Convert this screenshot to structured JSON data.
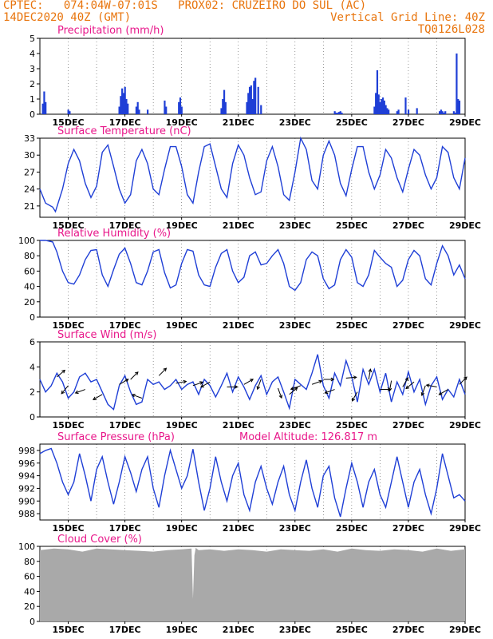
{
  "header": {
    "line1_left": "CPTEC:   074:04W-07:01S   PROX02: CRUZEIRO DO SUL (AC)",
    "line2_left": "14DEC2020 40Z (GMT)",
    "line2_right": "Vertical Grid Line: 40Z",
    "line3_right": "TQ0126L028"
  },
  "colors": {
    "header": "#e8740c",
    "title": "#e8178a",
    "line": "#1f3fd6",
    "bar": "#1f3fd6",
    "cloud": "#a9a9a9",
    "arrow": "#000000"
  },
  "x_tick_labels": [
    "15DEC",
    "17DEC",
    "19DEC",
    "21DEC",
    "23DEC",
    "25DEC",
    "27DEC",
    "29DEC"
  ],
  "chart_data": [
    {
      "type": "bar",
      "title": "Precipitation (mm/h)",
      "ylim": [
        0,
        5
      ],
      "yticks": [
        0,
        1,
        2,
        3,
        4,
        5
      ],
      "xlim": [
        14.0,
        29.0
      ],
      "x": [
        14.1,
        14.15,
        14.2,
        15.0,
        15.05,
        16.8,
        16.85,
        16.9,
        16.95,
        17.0,
        17.05,
        17.1,
        17.4,
        17.45,
        17.5,
        17.8,
        18.4,
        18.45,
        18.9,
        18.95,
        19.0,
        20.4,
        20.45,
        20.5,
        20.55,
        21.3,
        21.35,
        21.4,
        21.45,
        21.5,
        21.55,
        21.6,
        21.7,
        21.8,
        24.4,
        24.45,
        24.5,
        24.55,
        24.6,
        24.65,
        25.8,
        25.85,
        25.9,
        25.95,
        26.0,
        26.05,
        26.1,
        26.15,
        26.2,
        26.25,
        26.3,
        26.6,
        26.65,
        26.9,
        27.0,
        27.3,
        28.1,
        28.15,
        28.2,
        28.25,
        28.3,
        28.6,
        28.65,
        28.7,
        28.75,
        28.8
      ],
      "values": [
        0.7,
        1.5,
        0.8,
        0.3,
        0.2,
        0.5,
        1.2,
        1.7,
        1.4,
        1.8,
        1.0,
        0.7,
        0.5,
        0.8,
        0.3,
        0.3,
        0.9,
        0.5,
        0.8,
        1.1,
        0.5,
        0.4,
        1.0,
        1.6,
        0.8,
        0.8,
        1.4,
        1.8,
        1.9,
        1.0,
        2.2,
        2.4,
        1.8,
        0.6,
        0.2,
        0.1,
        0.1,
        0.15,
        0.2,
        0.1,
        0.5,
        1.4,
        2.9,
        1.3,
        0.8,
        1.0,
        1.1,
        0.9,
        0.6,
        0.4,
        0.3,
        0.2,
        0.3,
        1.1,
        0.3,
        0.4,
        0.2,
        0.3,
        0.2,
        0.1,
        0.2,
        0.2,
        0.1,
        4.0,
        1.0,
        0.9
      ]
    },
    {
      "type": "line",
      "title": "Surface Temperature (nC)",
      "ylim": [
        19,
        33
      ],
      "yticks": [
        21,
        24,
        27,
        30,
        33
      ],
      "xlim": [
        14.0,
        29.0
      ],
      "x": [
        14.0,
        14.2,
        14.45,
        14.55,
        14.8,
        15.0,
        15.2,
        15.4,
        15.6,
        15.8,
        16.0,
        16.2,
        16.4,
        16.6,
        16.8,
        17.0,
        17.2,
        17.4,
        17.6,
        17.8,
        18.0,
        18.2,
        18.4,
        18.6,
        18.8,
        19.0,
        19.2,
        19.4,
        19.6,
        19.8,
        20.0,
        20.2,
        20.4,
        20.6,
        20.8,
        21.0,
        21.2,
        21.4,
        21.6,
        21.8,
        22.0,
        22.2,
        22.4,
        22.6,
        22.8,
        23.0,
        23.2,
        23.4,
        23.6,
        23.8,
        24.0,
        24.2,
        24.4,
        24.6,
        24.8,
        25.0,
        25.2,
        25.4,
        25.6,
        25.8,
        26.0,
        26.2,
        26.4,
        26.6,
        26.8,
        27.0,
        27.2,
        27.4,
        27.6,
        27.8,
        28.0,
        28.2,
        28.4,
        28.6,
        28.8,
        29.0
      ],
      "values": [
        24.0,
        21.5,
        20.8,
        20.0,
        24.0,
        28.5,
        31.0,
        29.0,
        25.0,
        22.5,
        24.5,
        30.5,
        31.8,
        28.0,
        24.0,
        21.5,
        23.0,
        29.0,
        31.0,
        28.5,
        24.0,
        23.0,
        27.5,
        31.5,
        31.5,
        28.0,
        23.0,
        21.5,
        27.0,
        31.5,
        32.0,
        28.0,
        24.0,
        22.5,
        28.5,
        31.8,
        30.0,
        26.0,
        23.0,
        23.5,
        29.0,
        31.5,
        28.0,
        23.0,
        22.0,
        27.0,
        33.0,
        31.0,
        25.5,
        24.0,
        30.0,
        32.5,
        30.0,
        25.0,
        22.8,
        27.5,
        31.5,
        31.5,
        27.0,
        24.0,
        26.5,
        31.0,
        29.5,
        26.0,
        23.5,
        27.5,
        31.0,
        30.0,
        26.5,
        24.0,
        26.0,
        31.5,
        30.5,
        26.0,
        24.0,
        29.5
      ]
    },
    {
      "type": "line",
      "title": "Relative Humidity (%)",
      "ylim": [
        0,
        100
      ],
      "yticks": [
        0,
        20,
        40,
        60,
        80,
        100
      ],
      "xlim": [
        14.0,
        29.0
      ],
      "x": [
        14.0,
        14.2,
        14.45,
        14.6,
        14.8,
        15.0,
        15.2,
        15.4,
        15.6,
        15.8,
        16.0,
        16.2,
        16.4,
        16.6,
        16.8,
        17.0,
        17.2,
        17.4,
        17.6,
        17.8,
        18.0,
        18.2,
        18.4,
        18.6,
        18.8,
        19.0,
        19.2,
        19.4,
        19.6,
        19.8,
        20.0,
        20.2,
        20.4,
        20.6,
        20.8,
        21.0,
        21.2,
        21.4,
        21.6,
        21.8,
        22.0,
        22.2,
        22.4,
        22.6,
        22.8,
        23.0,
        23.2,
        23.4,
        23.6,
        23.8,
        24.0,
        24.2,
        24.4,
        24.6,
        24.8,
        25.0,
        25.2,
        25.4,
        25.6,
        25.8,
        26.0,
        26.2,
        26.4,
        26.6,
        26.8,
        27.0,
        27.2,
        27.4,
        27.6,
        27.8,
        28.0,
        28.2,
        28.4,
        28.6,
        28.8,
        29.0
      ],
      "values": [
        100,
        100,
        98,
        85,
        60,
        45,
        43,
        55,
        75,
        87,
        88,
        55,
        40,
        62,
        82,
        90,
        70,
        45,
        42,
        60,
        85,
        88,
        58,
        38,
        42,
        70,
        88,
        86,
        55,
        42,
        40,
        65,
        83,
        88,
        60,
        45,
        52,
        80,
        85,
        68,
        70,
        80,
        88,
        70,
        40,
        35,
        45,
        75,
        85,
        80,
        50,
        37,
        42,
        75,
        88,
        78,
        45,
        40,
        55,
        87,
        78,
        70,
        65,
        40,
        48,
        75,
        87,
        80,
        50,
        42,
        70,
        93,
        80,
        55,
        68,
        50
      ]
    },
    {
      "type": "line",
      "title": "Surface Wind (m/s)",
      "ylim": [
        0,
        6
      ],
      "yticks": [
        0,
        2,
        4,
        6
      ],
      "xlim": [
        14.0,
        29.0
      ],
      "x": [
        14.0,
        14.2,
        14.4,
        14.6,
        14.8,
        15.0,
        15.2,
        15.4,
        15.6,
        15.8,
        16.0,
        16.2,
        16.4,
        16.6,
        16.8,
        17.0,
        17.2,
        17.4,
        17.6,
        17.8,
        18.0,
        18.2,
        18.4,
        18.6,
        18.8,
        19.0,
        19.2,
        19.4,
        19.6,
        19.8,
        20.0,
        20.2,
        20.4,
        20.6,
        20.8,
        21.0,
        21.2,
        21.4,
        21.6,
        21.8,
        22.0,
        22.2,
        22.4,
        22.6,
        22.8,
        23.0,
        23.2,
        23.4,
        23.6,
        23.8,
        24.0,
        24.2,
        24.4,
        24.6,
        24.8,
        25.0,
        25.2,
        25.4,
        25.6,
        25.8,
        26.0,
        26.2,
        26.4,
        26.6,
        26.8,
        27.0,
        27.2,
        27.4,
        27.6,
        27.8,
        28.0,
        28.2,
        28.4,
        28.6,
        28.8,
        29.0
      ],
      "values": [
        3.0,
        2.0,
        2.5,
        3.5,
        2.8,
        1.5,
        2.0,
        3.2,
        3.5,
        2.8,
        3.0,
        2.0,
        1.0,
        0.6,
        2.5,
        3.3,
        2.0,
        1.0,
        1.2,
        3.0,
        2.6,
        2.8,
        2.2,
        2.5,
        3.0,
        2.2,
        2.6,
        2.8,
        1.8,
        3.0,
        2.5,
        1.6,
        2.5,
        3.5,
        2.0,
        3.2,
        2.4,
        1.4,
        2.5,
        3.3,
        1.8,
        2.8,
        3.2,
        2.0,
        0.7,
        3.0,
        2.6,
        2.2,
        3.5,
        5.0,
        2.5,
        1.5,
        3.5,
        2.5,
        4.5,
        3.2,
        1.2,
        3.8,
        2.6,
        3.8,
        2.0,
        3.5,
        1.2,
        2.8,
        1.8,
        3.6,
        2.0,
        3.0,
        1.0,
        2.5,
        3.2,
        1.4,
        2.2,
        1.6,
        3.0,
        1.8
      ]
    },
    {
      "type": "line",
      "title": "Surface Pressure (hPa)",
      "annotation": "Model Altitude: 126.817 m",
      "ylim": [
        987,
        999
      ],
      "yticks": [
        988,
        990,
        992,
        994,
        996,
        998
      ],
      "xlim": [
        14.0,
        29.0
      ],
      "x": [
        14.0,
        14.2,
        14.4,
        14.6,
        14.8,
        15.0,
        15.2,
        15.4,
        15.6,
        15.8,
        16.0,
        16.2,
        16.4,
        16.6,
        16.8,
        17.0,
        17.2,
        17.4,
        17.6,
        17.8,
        18.0,
        18.2,
        18.4,
        18.6,
        18.8,
        19.0,
        19.2,
        19.4,
        19.6,
        19.8,
        20.0,
        20.2,
        20.4,
        20.6,
        20.8,
        21.0,
        21.2,
        21.4,
        21.6,
        21.8,
        22.0,
        22.2,
        22.4,
        22.6,
        22.8,
        23.0,
        23.2,
        23.4,
        23.6,
        23.8,
        24.0,
        24.2,
        24.4,
        24.6,
        24.8,
        25.0,
        25.2,
        25.4,
        25.6,
        25.8,
        26.0,
        26.2,
        26.4,
        26.6,
        26.8,
        27.0,
        27.2,
        27.4,
        27.6,
        27.8,
        28.0,
        28.2,
        28.4,
        28.6,
        28.8,
        29.0
      ],
      "values": [
        997.5,
        998.0,
        998.3,
        996.0,
        993.0,
        991.0,
        993.0,
        997.5,
        994.0,
        990.0,
        995.0,
        997.0,
        993.0,
        989.5,
        993.0,
        997.0,
        994.5,
        991.5,
        995.0,
        997.0,
        992.0,
        989.0,
        994.0,
        998.0,
        995.0,
        992.0,
        994.0,
        998.2,
        993.0,
        988.5,
        992.0,
        997.0,
        993.0,
        990.0,
        994.0,
        996.0,
        991.0,
        988.5,
        993.0,
        995.5,
        992.0,
        989.5,
        993.0,
        995.5,
        991.0,
        988.5,
        993.0,
        996.5,
        992.0,
        989.0,
        994.0,
        995.5,
        990.5,
        987.5,
        992.0,
        996.0,
        993.0,
        989.0,
        993.0,
        995.0,
        991.0,
        989.0,
        993.0,
        997.0,
        993.0,
        989.0,
        993.0,
        995.0,
        991.0,
        988.0,
        992.0,
        997.5,
        994.0,
        990.5,
        991.0,
        990.0
      ]
    },
    {
      "type": "area",
      "title": "Cloud Cover (%)",
      "ylim": [
        0,
        100
      ],
      "yticks": [
        0,
        20,
        40,
        60,
        80,
        100
      ],
      "xlim": [
        14.0,
        29.0
      ],
      "x": [
        14.0,
        14.5,
        15.0,
        15.5,
        16.0,
        16.5,
        17.0,
        17.5,
        18.0,
        18.5,
        19.0,
        19.35,
        19.4,
        19.45,
        19.5,
        19.6,
        20.0,
        20.5,
        21.0,
        21.5,
        22.0,
        22.5,
        23.0,
        23.5,
        24.0,
        24.5,
        25.0,
        25.5,
        26.0,
        26.5,
        27.0,
        27.5,
        28.0,
        28.5,
        29.0
      ],
      "values": [
        95,
        97,
        96,
        93,
        97,
        96,
        95,
        94,
        93,
        95,
        96,
        97,
        30,
        88,
        98,
        95,
        96,
        94,
        96,
        95,
        93,
        96,
        95,
        94,
        96,
        93,
        97,
        95,
        94,
        96,
        95,
        93,
        97,
        94,
        96
      ]
    }
  ],
  "wind_arrows": {
    "x": [
      14.6,
      15.0,
      15.6,
      16.2,
      16.8,
      17.2,
      17.6,
      18.2,
      18.8,
      19.4,
      20.0,
      20.6,
      21.2,
      21.8,
      22.4,
      22.8,
      23.2,
      23.6,
      24.0,
      24.4,
      24.8,
      25.2,
      25.6,
      26.0,
      26.4,
      26.8,
      27.2,
      27.6,
      28.0,
      28.4,
      28.8
    ],
    "speed": [
      3.2,
      2.5,
      2.2,
      1.8,
      2.6,
      3.0,
      1.5,
      3.3,
      2.7,
      2.5,
      2.8,
      2.4,
      2.6,
      3.0,
      2.3,
      1.8,
      2.5,
      2.6,
      3.0,
      2.2,
      3.1,
      2.0,
      3.0,
      2.2,
      2.9,
      2.4,
      2.8,
      2.5,
      2.4,
      2.2,
      2.6
    ],
    "direction_deg": [
      40,
      230,
      200,
      210,
      30,
      45,
      160,
      45,
      10,
      20,
      210,
      0,
      30,
      250,
      290,
      40,
      200,
      20,
      0,
      200,
      5,
      240,
      80,
      0,
      260,
      60,
      220,
      250,
      170,
      210,
      45
    ]
  }
}
